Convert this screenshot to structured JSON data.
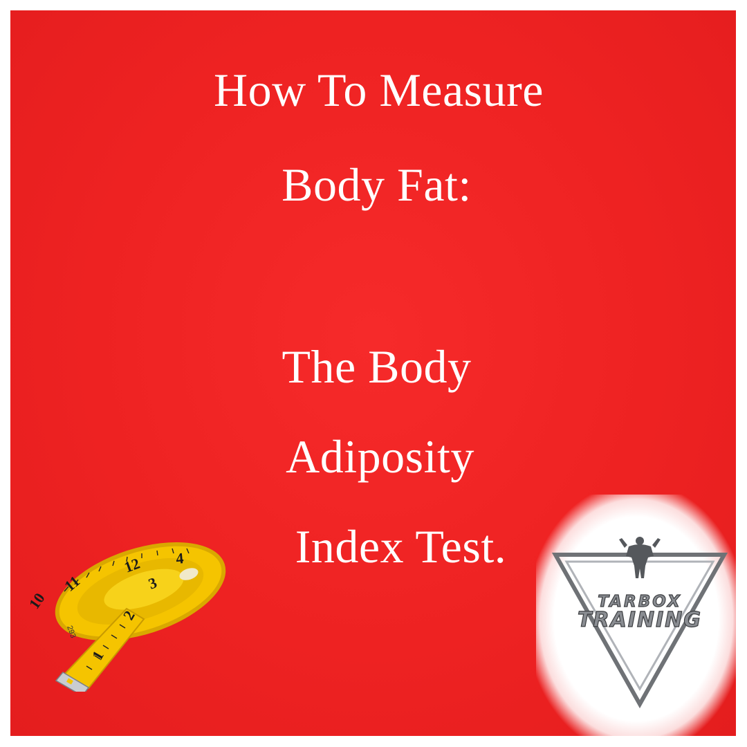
{
  "headline": {
    "line1": "How To Measure",
    "line2": "Body Fat:",
    "line3": "The Body",
    "line4": "Adiposity",
    "line5": "Index Test."
  },
  "tape_measure": {
    "numbers": [
      "10",
      "11",
      "12",
      "1",
      "2",
      "3",
      "4"
    ],
    "print": "293"
  },
  "logo": {
    "line1": "TARBOX",
    "line2": "TRAINING"
  },
  "colors": {
    "background": "#ee2222",
    "text": "#ffffff",
    "tape": "#f5c400",
    "logo_metal": "#8a8d92"
  }
}
